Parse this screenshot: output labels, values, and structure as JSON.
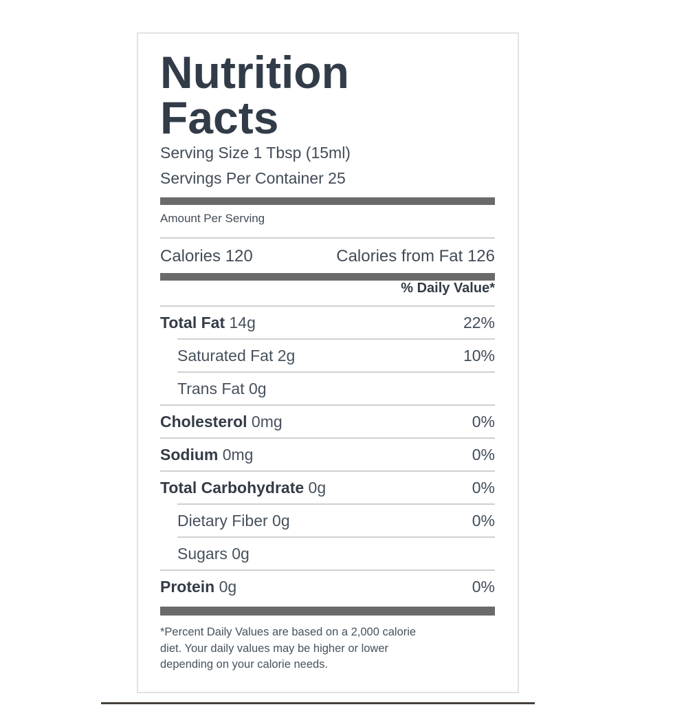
{
  "label": {
    "title": "Nutrition\nFacts",
    "serving_size": "Serving Size 1 Tbsp (15ml)",
    "servings_per_container": "Servings Per Container 25",
    "amount_per_serving": "Amount Per Serving",
    "calories": {
      "label": "Calories",
      "value": "120"
    },
    "calories_from_fat": {
      "label": "Calories from Fat",
      "value": "126"
    },
    "daily_value_header": "% Daily Value*",
    "nutrients": [
      {
        "name": "Total Fat",
        "amount": "14g",
        "dv": "22%",
        "bold": true,
        "indent": false
      },
      {
        "name": "Saturated Fat",
        "amount": "2g",
        "dv": "10%",
        "bold": false,
        "indent": true
      },
      {
        "name": "Trans Fat",
        "amount": "0g",
        "dv": "",
        "bold": false,
        "indent": true
      },
      {
        "name": "Cholesterol",
        "amount": "0mg",
        "dv": "0%",
        "bold": true,
        "indent": false
      },
      {
        "name": "Sodium",
        "amount": "0mg",
        "dv": "0%",
        "bold": true,
        "indent": false
      },
      {
        "name": "Total Carbohydrate",
        "amount": "0g",
        "dv": "0%",
        "bold": true,
        "indent": false
      },
      {
        "name": "Dietary Fiber",
        "amount": "0g",
        "dv": "0%",
        "bold": false,
        "indent": true
      },
      {
        "name": "Sugars",
        "amount": "0g",
        "dv": "",
        "bold": false,
        "indent": true
      },
      {
        "name": "Protein",
        "amount": "0g",
        "dv": "0%",
        "bold": true,
        "indent": false
      }
    ],
    "footnote": "*Percent Daily Values are based on a 2,000 calorie\ndiet. Your daily values may be higher or lower\ndepending on your calorie needs.",
    "colors": {
      "title_text": "#323c48",
      "body_text": "#46515d",
      "thick_bar": "#6a6a6a",
      "thin_rule": "#cfcfcf",
      "box_border": "#e2e2e2",
      "bottom_line": "#45403a"
    }
  }
}
